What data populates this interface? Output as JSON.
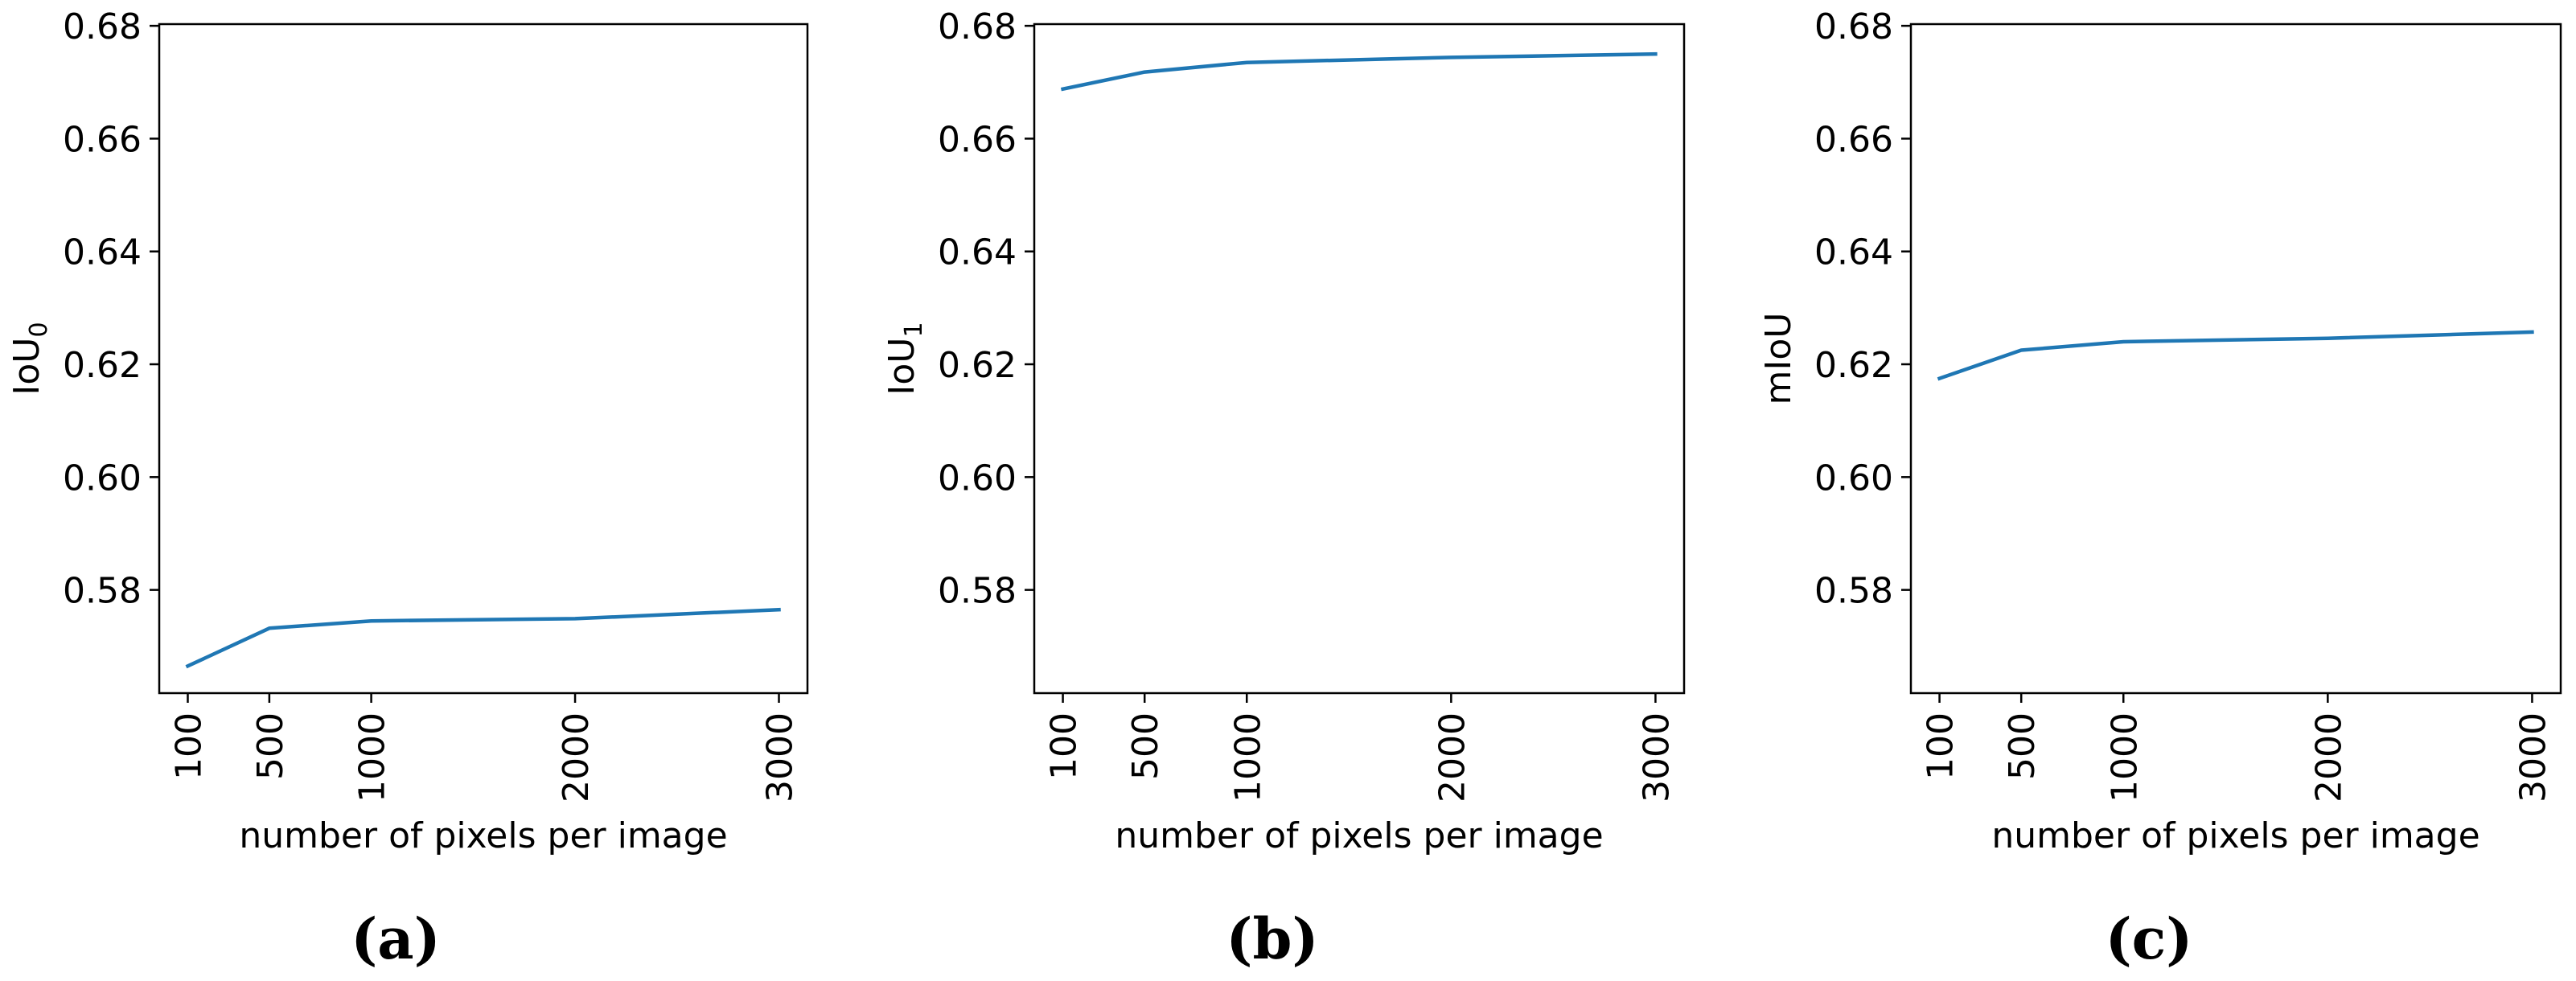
{
  "chart_data": [
    {
      "type": "line",
      "panel_label": "(a)",
      "xlabel": "number of pixels per image",
      "ylabel_main": "IoU",
      "ylabel_sub": "0",
      "x": [
        100,
        500,
        1000,
        2000,
        3000
      ],
      "x_tick_labels": [
        "100",
        "500",
        "1000",
        "2000",
        "3000"
      ],
      "y_ticks": [
        0.58,
        0.6,
        0.62,
        0.64,
        0.66,
        0.68
      ],
      "y_tick_labels": [
        "0.58",
        "0.60",
        "0.62",
        "0.64",
        "0.66",
        "0.68"
      ],
      "ylim": [
        0.5617,
        0.6803
      ],
      "xlim": [
        -40,
        3140
      ],
      "series": [
        {
          "values": [
            0.5665,
            0.5732,
            0.5745,
            0.5749,
            0.5765
          ],
          "color": "#1f77b4"
        }
      ],
      "grid": false,
      "x_tick_rotation": "vertical"
    },
    {
      "type": "line",
      "panel_label": "(b)",
      "xlabel": "number of pixels per image",
      "ylabel_main": "IoU",
      "ylabel_sub": "1",
      "x": [
        100,
        500,
        1000,
        2000,
        3000
      ],
      "x_tick_labels": [
        "100",
        "500",
        "1000",
        "2000",
        "3000"
      ],
      "y_ticks": [
        0.58,
        0.6,
        0.62,
        0.64,
        0.66,
        0.68
      ],
      "y_tick_labels": [
        "0.58",
        "0.60",
        "0.62",
        "0.64",
        "0.66",
        "0.68"
      ],
      "ylim": [
        0.5617,
        0.6803
      ],
      "xlim": [
        -40,
        3140
      ],
      "series": [
        {
          "values": [
            0.6688,
            0.6718,
            0.6735,
            0.6744,
            0.675
          ],
          "color": "#1f77b4"
        }
      ],
      "grid": false,
      "x_tick_rotation": "vertical"
    },
    {
      "type": "line",
      "panel_label": "(c)",
      "xlabel": "number of pixels per image",
      "ylabel_main": "mIoU",
      "ylabel_sub": "",
      "x": [
        100,
        500,
        1000,
        2000,
        3000
      ],
      "x_tick_labels": [
        "100",
        "500",
        "1000",
        "2000",
        "3000"
      ],
      "y_ticks": [
        0.58,
        0.6,
        0.62,
        0.64,
        0.66,
        0.68
      ],
      "y_tick_labels": [
        "0.58",
        "0.60",
        "0.62",
        "0.64",
        "0.66",
        "0.68"
      ],
      "ylim": [
        0.5617,
        0.6803
      ],
      "xlim": [
        -40,
        3140
      ],
      "series": [
        {
          "values": [
            0.6175,
            0.6225,
            0.624,
            0.6246,
            0.6257
          ],
          "color": "#1f77b4"
        }
      ],
      "grid": false,
      "x_tick_rotation": "vertical"
    }
  ]
}
